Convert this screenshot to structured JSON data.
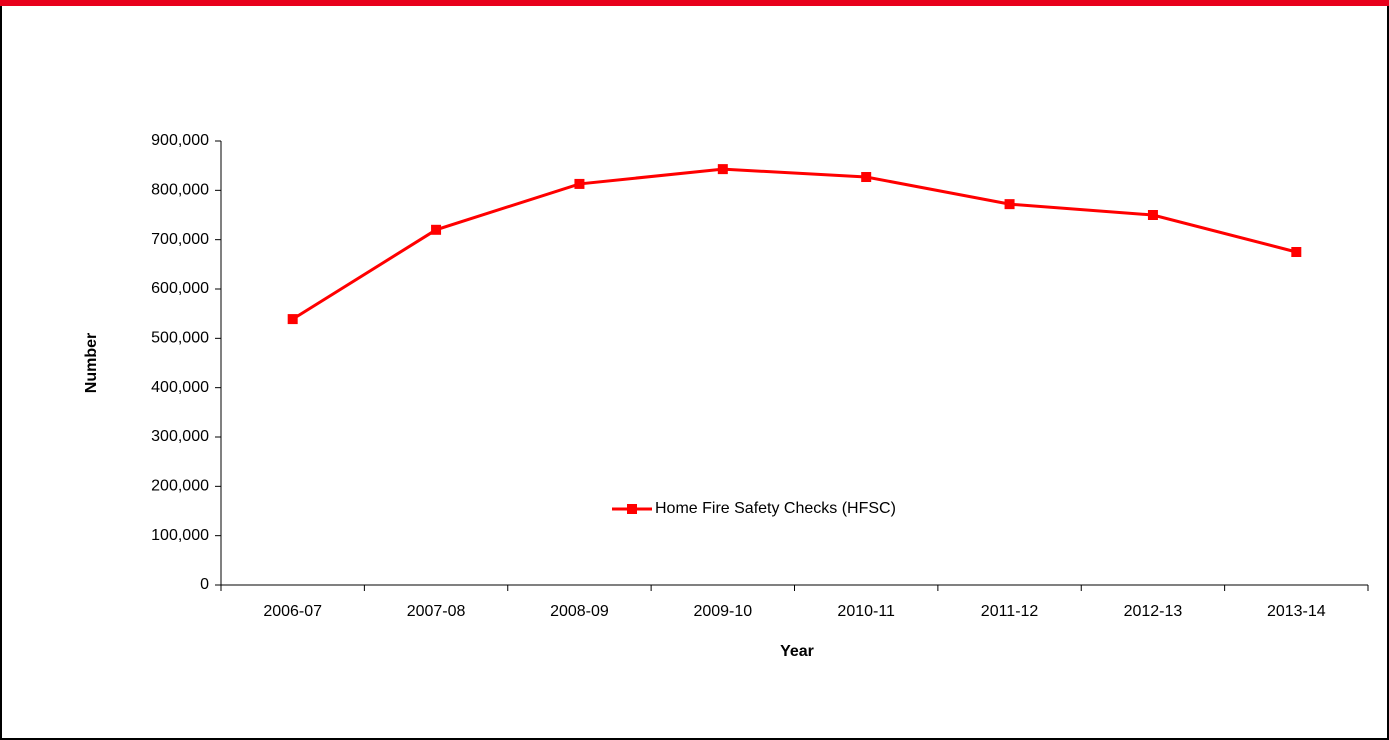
{
  "chart_data": {
    "type": "line",
    "x_label": "Year",
    "y_label": "Number",
    "categories": [
      "2006-07",
      "2007-08",
      "2008-09",
      "2009-10",
      "2010-11",
      "2011-12",
      "2012-13",
      "2013-14"
    ],
    "series": [
      {
        "name": "Home Fire Safety Checks (HFSC)",
        "color": "#ff0000",
        "values": [
          539000,
          720000,
          813000,
          843000,
          827000,
          772000,
          750000,
          675000
        ]
      }
    ],
    "ylim": [
      0,
      900000
    ],
    "yticks": [
      0,
      {
        "value": 100000,
        "label": "100,000"
      },
      {
        "value": 200000,
        "label": "200,000"
      },
      {
        "value": 300000,
        "label": "300,000"
      },
      {
        "value": 400000,
        "label": "400,000"
      },
      {
        "value": 500000,
        "label": "500,000"
      },
      {
        "value": 600000,
        "label": "600,000"
      },
      {
        "value": 700000,
        "label": "700,000"
      },
      {
        "value": 800000,
        "label": "800,000"
      },
      {
        "value": 900000,
        "label": "900,000"
      }
    ],
    "grid": false,
    "legend": "center"
  }
}
